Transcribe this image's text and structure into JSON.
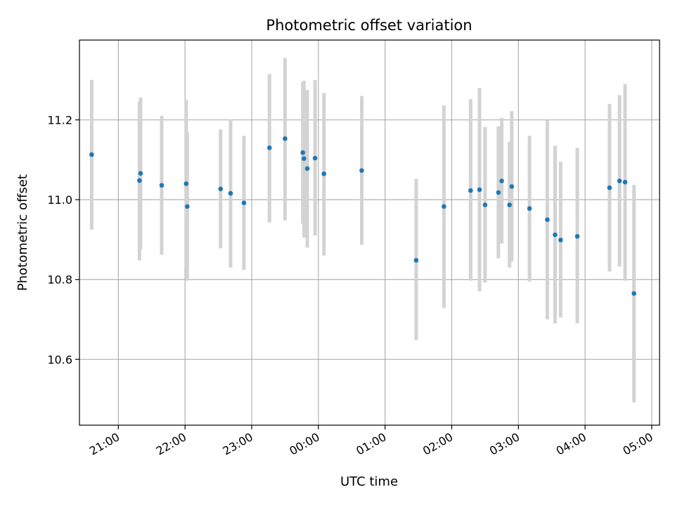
{
  "chart_data": {
    "type": "scatter",
    "title": "Photometric offset variation",
    "xlabel": "UTC time",
    "ylabel": "Photometric offset",
    "x_unit": "UTC",
    "xlim": [
      "20:25",
      "05:07"
    ],
    "ylim": [
      10.435,
      11.4
    ],
    "grid": true,
    "legend": "none",
    "colors": {
      "point": "#1f77b4",
      "errorbar": "#d3d3d3",
      "grid": "#b0b0b0"
    },
    "x_ticks": [
      "21:00",
      "22:00",
      "23:00",
      "00:00",
      "01:00",
      "02:00",
      "03:00",
      "04:00",
      "05:00"
    ],
    "y_ticks": [
      "10.6",
      "10.8",
      "11.0",
      "11.2"
    ],
    "points": [
      {
        "x": "20:36",
        "y": 11.113,
        "ylow": 10.925,
        "yhigh": 11.3
      },
      {
        "x": "21:19",
        "y": 11.048,
        "ylow": 10.848,
        "yhigh": 11.245
      },
      {
        "x": "21:20",
        "y": 11.066,
        "ylow": 10.876,
        "yhigh": 11.256
      },
      {
        "x": "21:39",
        "y": 11.036,
        "ylow": 10.862,
        "yhigh": 11.21
      },
      {
        "x": "22:01",
        "y": 11.04,
        "ylow": 10.83,
        "yhigh": 11.25
      },
      {
        "x": "22:02",
        "y": 10.983,
        "ylow": 10.797,
        "yhigh": 11.17
      },
      {
        "x": "22:32",
        "y": 11.027,
        "ylow": 10.878,
        "yhigh": 11.176
      },
      {
        "x": "22:41",
        "y": 11.016,
        "ylow": 10.83,
        "yhigh": 11.202
      },
      {
        "x": "22:53",
        "y": 10.992,
        "ylow": 10.824,
        "yhigh": 11.16
      },
      {
        "x": "23:16",
        "y": 11.13,
        "ylow": 10.943,
        "yhigh": 11.315
      },
      {
        "x": "23:30",
        "y": 11.153,
        "ylow": 10.948,
        "yhigh": 11.355
      },
      {
        "x": "23:46",
        "y": 11.118,
        "ylow": 10.94,
        "yhigh": 11.295
      },
      {
        "x": "23:47",
        "y": 11.103,
        "ylow": 10.905,
        "yhigh": 11.298
      },
      {
        "x": "23:50",
        "y": 11.078,
        "ylow": 10.88,
        "yhigh": 11.275
      },
      {
        "x": "23:57",
        "y": 11.104,
        "ylow": 10.91,
        "yhigh": 11.3
      },
      {
        "x": "00:05",
        "y": 11.065,
        "ylow": 10.86,
        "yhigh": 11.267
      },
      {
        "x": "00:39",
        "y": 11.073,
        "ylow": 10.887,
        "yhigh": 11.26
      },
      {
        "x": "01:28",
        "y": 10.848,
        "ylow": 10.648,
        "yhigh": 11.052
      },
      {
        "x": "01:53",
        "y": 10.983,
        "ylow": 10.728,
        "yhigh": 11.236
      },
      {
        "x": "02:17",
        "y": 11.023,
        "ylow": 10.797,
        "yhigh": 11.252
      },
      {
        "x": "02:25",
        "y": 11.025,
        "ylow": 10.77,
        "yhigh": 11.28
      },
      {
        "x": "02:30",
        "y": 10.987,
        "ylow": 10.792,
        "yhigh": 11.182
      },
      {
        "x": "02:42",
        "y": 11.018,
        "ylow": 10.853,
        "yhigh": 11.184
      },
      {
        "x": "02:45",
        "y": 11.047,
        "ylow": 10.89,
        "yhigh": 11.205
      },
      {
        "x": "02:52",
        "y": 10.987,
        "ylow": 10.83,
        "yhigh": 11.145
      },
      {
        "x": "02:54",
        "y": 11.033,
        "ylow": 10.845,
        "yhigh": 11.222
      },
      {
        "x": "03:10",
        "y": 10.978,
        "ylow": 10.795,
        "yhigh": 11.16
      },
      {
        "x": "03:26",
        "y": 10.95,
        "ylow": 10.7,
        "yhigh": 11.2
      },
      {
        "x": "03:33",
        "y": 10.912,
        "ylow": 10.69,
        "yhigh": 11.135
      },
      {
        "x": "03:38",
        "y": 10.899,
        "ylow": 10.705,
        "yhigh": 11.095
      },
      {
        "x": "03:53",
        "y": 10.908,
        "ylow": 10.69,
        "yhigh": 11.13
      },
      {
        "x": "04:22",
        "y": 11.03,
        "ylow": 10.82,
        "yhigh": 11.24
      },
      {
        "x": "04:31",
        "y": 11.047,
        "ylow": 10.832,
        "yhigh": 11.262
      },
      {
        "x": "04:36",
        "y": 11.044,
        "ylow": 10.797,
        "yhigh": 11.29
      },
      {
        "x": "04:44",
        "y": 10.765,
        "ylow": 10.492,
        "yhigh": 11.037
      }
    ]
  }
}
